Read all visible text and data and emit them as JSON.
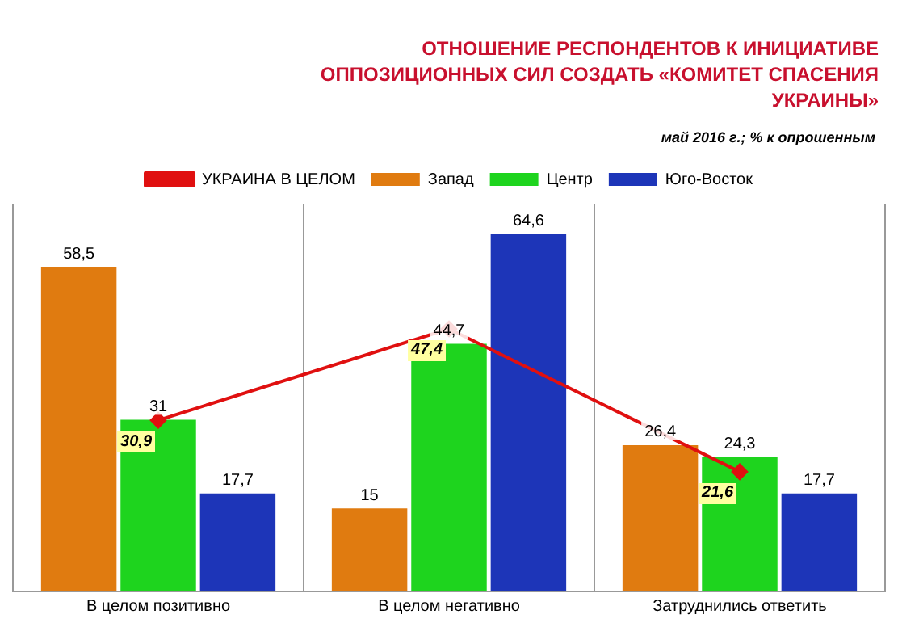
{
  "chart_data": {
    "type": "bar",
    "title": "ОТНОШЕНИЕ РЕСПОНДЕНТОВ К ИНИЦИАТИВЕ ОППОЗИЦИОННЫХ СИЛ СОЗДАТЬ «КОМИТЕТ СПАСЕНИЯ УКРАИНЫ»",
    "subtitle": "май 2016 г.; % к опрошенным",
    "categories": [
      "В целом позитивно",
      "В целом негативно",
      "Затруднились ответить"
    ],
    "series": [
      {
        "name": "Запад",
        "color": "#e07b10",
        "values": [
          58.5,
          15,
          26.4
        ],
        "value_labels": [
          "58,5",
          "15",
          "26,4"
        ]
      },
      {
        "name": "Центр",
        "color": "#1ed41e",
        "values": [
          31,
          44.7,
          24.3
        ],
        "value_labels": [
          "31",
          "44,7",
          "24,3"
        ]
      },
      {
        "name": "Юго-Восток",
        "color": "#1d35b8",
        "values": [
          17.7,
          64.6,
          17.7
        ],
        "value_labels": [
          "17,7",
          "64,6",
          "17,7"
        ]
      },
      {
        "name": "УКРАИНА В ЦЕЛОМ",
        "type": "line",
        "color": "#e01010",
        "values": [
          30.9,
          47.4,
          21.6
        ],
        "value_labels": [
          "30,9",
          "47,4",
          "21,6"
        ]
      }
    ],
    "legend": "top",
    "grid": "x",
    "marker": "diamond",
    "line_style": "solid"
  }
}
